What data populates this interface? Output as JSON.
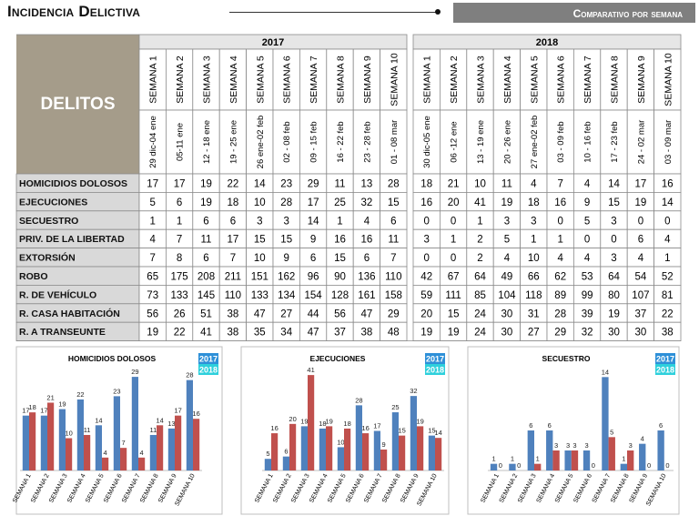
{
  "header": {
    "title": "Incidencia Delictiva",
    "banner": "Comparativo por semana"
  },
  "table": {
    "corner_label": "DELITOS",
    "groups": [
      {
        "year": "2017",
        "weeks": [
          "SEMANA 1",
          "SEMANA 2",
          "SEMANA 3",
          "SEMANA 4",
          "SEMANA 5",
          "SEMANA 6",
          "SEMANA 7",
          "SEMANA 8",
          "SEMANA 9",
          "SEMANA 10"
        ],
        "dates": [
          "29 dic-04 ene",
          "05-11 ene",
          "12 - 18 ene",
          "19 - 25 ene",
          "26 ene-02 feb",
          "02 - 08 feb",
          "09 - 15 feb",
          "16 - 22 feb",
          "23 - 28 feb",
          "01 - 08 mar"
        ]
      },
      {
        "year": "2018",
        "weeks": [
          "SEMANA 1",
          "SEMANA 2",
          "SEMANA 3",
          "SEMANA 4",
          "SEMANA 5",
          "SEMANA 6",
          "SEMANA 7",
          "SEMANA 8",
          "SEMANA 9",
          "SEMANA 10"
        ],
        "dates": [
          "30 dic-05 ene",
          "06 -12 ene",
          "13 - 19 ene",
          "20 - 26 ene",
          "27 ene-02 feb",
          "03 - 09 feb",
          "10 - 16 feb",
          "17 - 23 feb",
          "24 - 02 mar",
          "03 - 09 mar"
        ]
      }
    ],
    "rows": [
      {
        "label": "HOMICIDIOS DOLOSOS",
        "y2017": [
          17,
          17,
          19,
          22,
          14,
          23,
          29,
          11,
          13,
          28
        ],
        "y2018": [
          18,
          21,
          10,
          11,
          4,
          7,
          4,
          14,
          17,
          16
        ]
      },
      {
        "label": "EJECUCIONES",
        "y2017": [
          5,
          6,
          19,
          18,
          10,
          28,
          17,
          25,
          32,
          15
        ],
        "y2018": [
          16,
          20,
          41,
          19,
          18,
          16,
          9,
          15,
          19,
          14
        ]
      },
      {
        "label": "SECUESTRO",
        "y2017": [
          1,
          1,
          6,
          6,
          3,
          3,
          14,
          1,
          4,
          6
        ],
        "y2018": [
          0,
          0,
          1,
          3,
          3,
          0,
          5,
          3,
          0,
          0
        ]
      },
      {
        "label": "PRIV. DE LA LIBERTAD",
        "y2017": [
          4,
          7,
          11,
          17,
          15,
          15,
          9,
          16,
          16,
          11
        ],
        "y2018": [
          3,
          1,
          2,
          5,
          1,
          1,
          0,
          0,
          6,
          4
        ]
      },
      {
        "label": "EXTORSIÓN",
        "y2017": [
          7,
          8,
          6,
          7,
          10,
          9,
          6,
          15,
          6,
          7
        ],
        "y2018": [
          0,
          0,
          2,
          4,
          10,
          4,
          4,
          3,
          4,
          1
        ]
      },
      {
        "label": "ROBO",
        "y2017": [
          65,
          175,
          208,
          211,
          151,
          162,
          96,
          90,
          136,
          110
        ],
        "y2018": [
          42,
          67,
          64,
          49,
          66,
          62,
          53,
          64,
          54,
          52
        ]
      },
      {
        "label": "R. DE VEHÍCULO",
        "y2017": [
          73,
          133,
          145,
          110,
          133,
          134,
          154,
          128,
          161,
          158
        ],
        "y2018": [
          59,
          111,
          85,
          104,
          118,
          89,
          99,
          80,
          107,
          81
        ]
      },
      {
        "label": "R. CASA HABITACIÓN",
        "y2017": [
          56,
          26,
          51,
          38,
          47,
          27,
          44,
          56,
          47,
          29
        ],
        "y2018": [
          20,
          15,
          24,
          30,
          31,
          28,
          39,
          19,
          37,
          22
        ]
      },
      {
        "label": "R. A TRANSEUNTE",
        "y2017": [
          19,
          22,
          41,
          38,
          35,
          34,
          47,
          37,
          38,
          48
        ],
        "y2018": [
          19,
          19,
          24,
          30,
          27,
          29,
          32,
          30,
          30,
          38
        ]
      }
    ]
  },
  "chart_data": [
    {
      "type": "bar",
      "title": "HOMICIDIOS DOLOSOS",
      "categories": [
        "SEMANA 1",
        "SEMANA 2",
        "SEMANA 3",
        "SEMANA 4",
        "SEMANA 5",
        "SEMANA 6",
        "SEMANA 7",
        "SEMANA 8",
        "SEMANA 9",
        "SEMANA 10"
      ],
      "series": [
        {
          "name": "2017",
          "color": "#4f81bd",
          "values": [
            17,
            17,
            19,
            22,
            14,
            23,
            29,
            11,
            13,
            28
          ]
        },
        {
          "name": "2018",
          "color": "#c0504d",
          "values": [
            18,
            21,
            10,
            11,
            4,
            7,
            4,
            14,
            17,
            16
          ]
        }
      ],
      "ylim": [
        0,
        31
      ],
      "legend_position": "top-right",
      "legend_colors": [
        "#2e90d8",
        "#2ed0dc"
      ],
      "grid": false
    },
    {
      "type": "bar",
      "title": "EJECUCIONES",
      "categories": [
        "SEMANA 1",
        "SEMANA 2",
        "SEMANA 3",
        "SEMANA 4",
        "SEMANA 5",
        "SEMANA 6",
        "SEMANA 7",
        "SEMANA 8",
        "SEMANA 9",
        "SEMANA 10"
      ],
      "series": [
        {
          "name": "2017",
          "color": "#4f81bd",
          "values": [
            5,
            6,
            19,
            18,
            10,
            28,
            17,
            25,
            32,
            15
          ]
        },
        {
          "name": "2018",
          "color": "#c0504d",
          "values": [
            16,
            20,
            41,
            19,
            18,
            16,
            9,
            15,
            19,
            14
          ]
        }
      ],
      "ylim": [
        0,
        43
      ],
      "legend_position": "top-right",
      "legend_colors": [
        "#2e90d8",
        "#2ed0dc"
      ],
      "grid": false
    },
    {
      "type": "bar",
      "title": "SECUESTRO",
      "categories": [
        "SEMANA 1",
        "SEMANA 2",
        "SEMANA 3",
        "SEMANA 4",
        "SEMANA 5",
        "SEMANA 6",
        "SEMANA 7",
        "SEMANA 8",
        "SEMANA 9",
        "SEMANA 10"
      ],
      "series": [
        {
          "name": "2017",
          "color": "#4f81bd",
          "values": [
            1,
            1,
            6,
            6,
            3,
            3,
            14,
            1,
            4,
            6
          ]
        },
        {
          "name": "2018",
          "color": "#c0504d",
          "values": [
            0,
            0,
            1,
            3,
            3,
            0,
            5,
            3,
            0,
            0
          ]
        }
      ],
      "ylim": [
        0,
        15
      ],
      "legend_position": "top-right",
      "legend_colors": [
        "#2e90d8",
        "#2ed0dc"
      ],
      "grid": false
    }
  ]
}
